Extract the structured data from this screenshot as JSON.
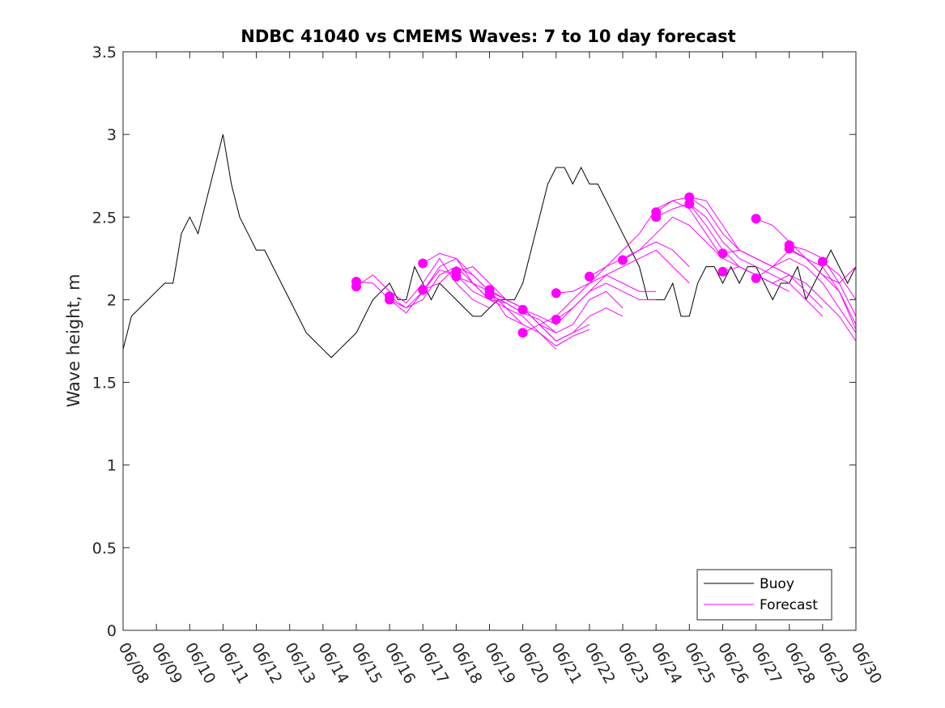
{
  "chart_data": {
    "type": "line",
    "title": "NDBC 41040 vs CMEMS Waves: 7 to 10 day forecast",
    "ylabel": "Wave height, m",
    "xlabel": "",
    "x_tick_labels": [
      "06/08",
      "06/09",
      "06/10",
      "06/11",
      "06/12",
      "06/13",
      "06/14",
      "06/15",
      "06/16",
      "06/17",
      "06/18",
      "06/19",
      "06/20",
      "06/21",
      "06/22",
      "06/23",
      "06/24",
      "06/25",
      "06/26",
      "06/27",
      "06/28",
      "06/29",
      "06/30"
    ],
    "xlim_days": [
      0,
      22
    ],
    "ylim": [
      0,
      3.5
    ],
    "y_ticks": [
      "0",
      "0.5",
      "1",
      "1.5",
      "2",
      "2.5",
      "3",
      "3.5"
    ],
    "grid": false,
    "legend_position": "bottom-right",
    "colors": {
      "buoy": "#000000",
      "forecast": "#ff00ff"
    },
    "series": [
      {
        "name": "Buoy",
        "x": [
          0,
          0.25,
          0.5,
          0.75,
          1,
          1.25,
          1.5,
          1.75,
          2,
          2.25,
          2.5,
          2.75,
          3,
          3.25,
          3.5,
          3.75,
          4,
          4.25,
          4.5,
          4.75,
          5,
          5.25,
          5.5,
          5.75,
          6,
          6.25,
          6.5,
          6.75,
          7,
          7.25,
          7.5,
          7.75,
          8,
          8.25,
          8.5,
          8.75,
          9,
          9.25,
          9.5,
          9.75,
          10,
          10.25,
          10.5,
          10.75,
          11,
          11.25,
          11.5,
          11.75,
          12,
          12.25,
          12.5,
          12.75,
          13,
          13.25,
          13.5,
          13.75,
          14,
          14.25,
          14.5,
          14.75,
          15,
          15.25,
          15.5,
          15.75,
          16,
          16.25,
          16.5,
          16.75,
          17,
          17.25,
          17.5,
          17.75,
          18,
          18.25,
          18.5,
          18.75,
          19,
          19.25,
          19.5,
          19.75,
          20,
          20.25,
          20.5,
          20.75,
          21,
          21.25,
          21.5,
          21.75,
          22
        ],
        "y": [
          1.7,
          1.9,
          1.95,
          2.0,
          2.05,
          2.1,
          2.1,
          2.4,
          2.5,
          2.4,
          2.6,
          2.8,
          3.0,
          2.7,
          2.5,
          2.4,
          2.3,
          2.3,
          2.2,
          2.1,
          2.0,
          1.9,
          1.8,
          1.75,
          1.7,
          1.65,
          1.7,
          1.75,
          1.8,
          1.9,
          2.0,
          2.05,
          2.1,
          2.0,
          2.0,
          2.2,
          2.1,
          2.0,
          2.1,
          2.05,
          2.0,
          1.95,
          1.9,
          1.9,
          1.95,
          2.0,
          2.0,
          2.0,
          2.1,
          2.3,
          2.5,
          2.7,
          2.8,
          2.8,
          2.7,
          2.8,
          2.7,
          2.7,
          2.6,
          2.5,
          2.4,
          2.3,
          2.2,
          2.0,
          2.0,
          2.0,
          2.1,
          1.9,
          1.9,
          2.1,
          2.2,
          2.2,
          2.1,
          2.2,
          2.1,
          2.2,
          2.2,
          2.1,
          2.0,
          2.1,
          2.1,
          2.2,
          2.0,
          2.1,
          2.2,
          2.3,
          2.2,
          2.1,
          2.2
        ]
      },
      {
        "name": "Forecast",
        "runs": [
          {
            "x": [
              7,
              7.5,
              8,
              8.5,
              9,
              9.5,
              10,
              10.5,
              11
            ],
            "y": [
              2.11,
              2.1,
              2.0,
              1.95,
              2.05,
              2.18,
              2.15,
              2.05,
              2.0
            ]
          },
          {
            "x": [
              7,
              7.5,
              8,
              8.5,
              9,
              9.5,
              10,
              10.5,
              11
            ],
            "y": [
              2.08,
              2.15,
              2.05,
              1.98,
              2.1,
              2.25,
              2.1,
              2.0,
              1.95
            ]
          },
          {
            "x": [
              8,
              8.5,
              9,
              9.5,
              10,
              10.5,
              11,
              11.5,
              12
            ],
            "y": [
              2.02,
              1.95,
              2.0,
              2.15,
              2.2,
              2.1,
              2.0,
              1.98,
              1.92
            ]
          },
          {
            "x": [
              8,
              8.5,
              9,
              9.5,
              10,
              10.5,
              11,
              11.5,
              12
            ],
            "y": [
              2.0,
              1.92,
              2.05,
              2.2,
              2.25,
              2.15,
              2.05,
              1.9,
              1.85
            ]
          },
          {
            "x": [
              9,
              9.5,
              10,
              10.5,
              11,
              11.5,
              12,
              12.5,
              13
            ],
            "y": [
              2.22,
              2.28,
              2.25,
              2.1,
              2.0,
              1.95,
              1.9,
              1.8,
              1.7
            ]
          },
          {
            "x": [
              9,
              9.5,
              10,
              10.5,
              11,
              11.5,
              12,
              12.5,
              13
            ],
            "y": [
              2.06,
              2.1,
              2.2,
              2.15,
              2.05,
              2.0,
              1.95,
              1.85,
              1.8
            ]
          },
          {
            "x": [
              10,
              10.5,
              11,
              11.5,
              12,
              12.5,
              13,
              13.5,
              14
            ],
            "y": [
              2.17,
              2.2,
              2.1,
              2.0,
              1.95,
              1.85,
              1.75,
              1.8,
              1.85
            ]
          },
          {
            "x": [
              10,
              10.5,
              11,
              11.5,
              12,
              12.5,
              13,
              13.5,
              14
            ],
            "y": [
              2.14,
              2.1,
              2.05,
              1.95,
              1.85,
              1.8,
              1.72,
              1.78,
              1.82
            ]
          },
          {
            "x": [
              11,
              11.5,
              12,
              12.5,
              13,
              13.5,
              14,
              14.5,
              15
            ],
            "y": [
              2.06,
              2.0,
              1.95,
              1.85,
              1.75,
              1.8,
              1.9,
              1.95,
              1.9
            ]
          },
          {
            "x": [
              11,
              11.5,
              12,
              12.5,
              13,
              13.5,
              14,
              14.5,
              15
            ],
            "y": [
              2.03,
              1.98,
              1.92,
              1.88,
              1.8,
              1.85,
              2.0,
              2.05,
              1.95
            ]
          },
          {
            "x": [
              12,
              12.5,
              13,
              13.5,
              14,
              14.5,
              15,
              15.5,
              16
            ],
            "y": [
              1.94,
              1.9,
              1.85,
              1.95,
              2.05,
              2.1,
              2.05,
              2.0,
              2.0
            ]
          },
          {
            "x": [
              12,
              12.5,
              13,
              13.5,
              14,
              14.5,
              15,
              15.5,
              16
            ],
            "y": [
              1.8,
              1.85,
              1.9,
              2.0,
              2.1,
              2.15,
              2.1,
              2.05,
              2.05
            ]
          },
          {
            "x": [
              13,
              13.5,
              14,
              14.5,
              15,
              15.5,
              16,
              16.5,
              17
            ],
            "y": [
              2.04,
              2.05,
              2.1,
              2.2,
              2.25,
              2.3,
              2.35,
              2.3,
              2.2
            ]
          },
          {
            "x": [
              13,
              13.5,
              14,
              14.5,
              15,
              15.5,
              16,
              16.5,
              17
            ],
            "y": [
              1.88,
              1.95,
              2.05,
              2.15,
              2.2,
              2.25,
              2.3,
              2.2,
              2.1
            ]
          },
          {
            "x": [
              14,
              14.5,
              15,
              15.5,
              16,
              16.5,
              17,
              17.5,
              18
            ],
            "y": [
              2.14,
              2.2,
              2.3,
              2.4,
              2.55,
              2.6,
              2.55,
              2.4,
              2.25
            ]
          },
          {
            "x": [
              15,
              15.5,
              16,
              16.5,
              17,
              17.5,
              18,
              18.5,
              19
            ],
            "y": [
              2.24,
              2.3,
              2.4,
              2.5,
              2.45,
              2.35,
              2.25,
              2.2,
              2.15
            ]
          },
          {
            "x": [
              16,
              16.5,
              17,
              17.5,
              18,
              18.5,
              19,
              19.5,
              20
            ],
            "y": [
              2.53,
              2.6,
              2.62,
              2.55,
              2.4,
              2.3,
              2.25,
              2.2,
              2.15
            ]
          },
          {
            "x": [
              16,
              16.5,
              17,
              17.5,
              18,
              18.5,
              19,
              19.5,
              20
            ],
            "y": [
              2.5,
              2.55,
              2.58,
              2.45,
              2.3,
              2.2,
              2.15,
              2.1,
              2.05
            ]
          },
          {
            "x": [
              17,
              17.5,
              18,
              18.5,
              19,
              19.5,
              20,
              20.5,
              21
            ],
            "y": [
              2.62,
              2.6,
              2.45,
              2.3,
              2.25,
              2.2,
              2.15,
              2.05,
              1.95
            ]
          },
          {
            "x": [
              17,
              17.5,
              18,
              18.5,
              19,
              19.5,
              20,
              20.5,
              21
            ],
            "y": [
              2.58,
              2.5,
              2.35,
              2.25,
              2.2,
              2.15,
              2.1,
              2.0,
              1.9
            ]
          },
          {
            "x": [
              18,
              18.5,
              19,
              19.5,
              20,
              20.5,
              21,
              21.5,
              22
            ],
            "y": [
              2.28,
              2.3,
              2.25,
              2.2,
              2.25,
              2.2,
              2.1,
              1.95,
              1.8
            ]
          },
          {
            "x": [
              18,
              18.5,
              19,
              19.5,
              20,
              20.5,
              21,
              21.5,
              22
            ],
            "y": [
              2.17,
              2.2,
              2.15,
              2.1,
              2.15,
              2.1,
              2.0,
              1.9,
              1.75
            ]
          },
          {
            "x": [
              19,
              19.5,
              20,
              20.5,
              21,
              21.5,
              22
            ],
            "y": [
              2.49,
              2.45,
              2.35,
              2.25,
              2.15,
              2.05,
              1.85
            ]
          },
          {
            "x": [
              19,
              19.5,
              20,
              20.5,
              21,
              21.5,
              22
            ],
            "y": [
              2.13,
              2.2,
              2.3,
              2.25,
              2.15,
              2.1,
              2.2
            ]
          },
          {
            "x": [
              20,
              20.5,
              21,
              21.5,
              22
            ],
            "y": [
              2.33,
              2.3,
              2.25,
              2.1,
              1.9
            ]
          },
          {
            "x": [
              20,
              20.5,
              21,
              21.5,
              22
            ],
            "y": [
              2.31,
              2.25,
              2.2,
              2.05,
              1.82
            ]
          },
          {
            "x": [
              21,
              21.5,
              22
            ],
            "y": [
              2.23,
              2.15,
              2.0
            ]
          }
        ]
      }
    ]
  }
}
